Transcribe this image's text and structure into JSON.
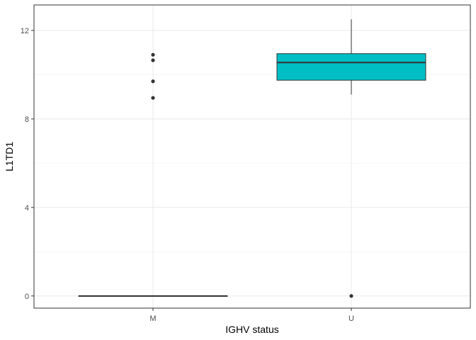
{
  "chart_data": {
    "type": "boxplot",
    "title": "",
    "xlabel": "IGHV status",
    "ylabel": "L1TD1",
    "categories": [
      "M",
      "U"
    ],
    "ylim": [
      -0.55,
      13.15
    ],
    "yticks": [
      0,
      4,
      8,
      12
    ],
    "grid": true,
    "legend": "none",
    "boxes": [
      {
        "category": "M",
        "q1": 0,
        "median": 0,
        "q3": 0,
        "whisker_low": 0,
        "whisker_high": 0,
        "outliers": [
          8.95,
          9.7,
          10.65,
          10.9
        ],
        "fill": "#F8766D"
      },
      {
        "category": "U",
        "q1": 9.75,
        "median": 10.55,
        "q3": 10.95,
        "whisker_low": 9.1,
        "whisker_high": 12.5,
        "outliers": [
          0
        ],
        "fill": "#00BFC4"
      }
    ]
  }
}
